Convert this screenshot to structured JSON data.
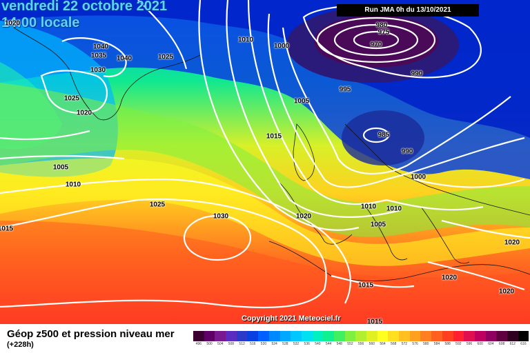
{
  "title": {
    "date": "vendredi 22 octobre 2021",
    "time": "14:00 locale"
  },
  "run": "Run JMA 0h du 13/10/2021",
  "copyright": "Copyright 2021 Meteociel.fr",
  "footer": {
    "title": "Géop z500 et pression niveau mer",
    "subtitle": "(+228h)"
  },
  "isobar_labels": [
    "1020",
    "1040",
    "1035",
    "1030",
    "1040",
    "1025",
    "1010",
    "1000",
    "980",
    "975",
    "970",
    "990",
    "995",
    "1025",
    "1020",
    "1005",
    "1015",
    "985",
    "990",
    "1005",
    "1010",
    "1000",
    "1025",
    "1030",
    "1020",
    "1010",
    "1010",
    "1005",
    "1020",
    "1015",
    "1020",
    "1020",
    "1015",
    "1015"
  ],
  "scale": {
    "labels": [
      "496",
      "500",
      "504",
      "508",
      "512",
      "516",
      "520",
      "524",
      "528",
      "532",
      "536",
      "540",
      "544",
      "548",
      "552",
      "556",
      "560",
      "564",
      "568",
      "572",
      "576",
      "580",
      "584",
      "588",
      "592",
      "596",
      "600",
      "604",
      "608",
      "612",
      "616"
    ],
    "colors": [
      "#3a0030",
      "#5e0066",
      "#7a1a90",
      "#5a2cc0",
      "#2d3ac8",
      "#0a3fe0",
      "#0060ff",
      "#0088ff",
      "#00a8ff",
      "#00c8ff",
      "#00e0f0",
      "#00f0c0",
      "#10f090",
      "#40f060",
      "#80f040",
      "#b0f030",
      "#e0f020",
      "#ffff20",
      "#ffe020",
      "#ffc020",
      "#ffa020",
      "#ff8020",
      "#ff6020",
      "#ff4020",
      "#ff2030",
      "#e01050",
      "#c00060",
      "#900060",
      "#600040",
      "#300020",
      "#000000"
    ]
  }
}
